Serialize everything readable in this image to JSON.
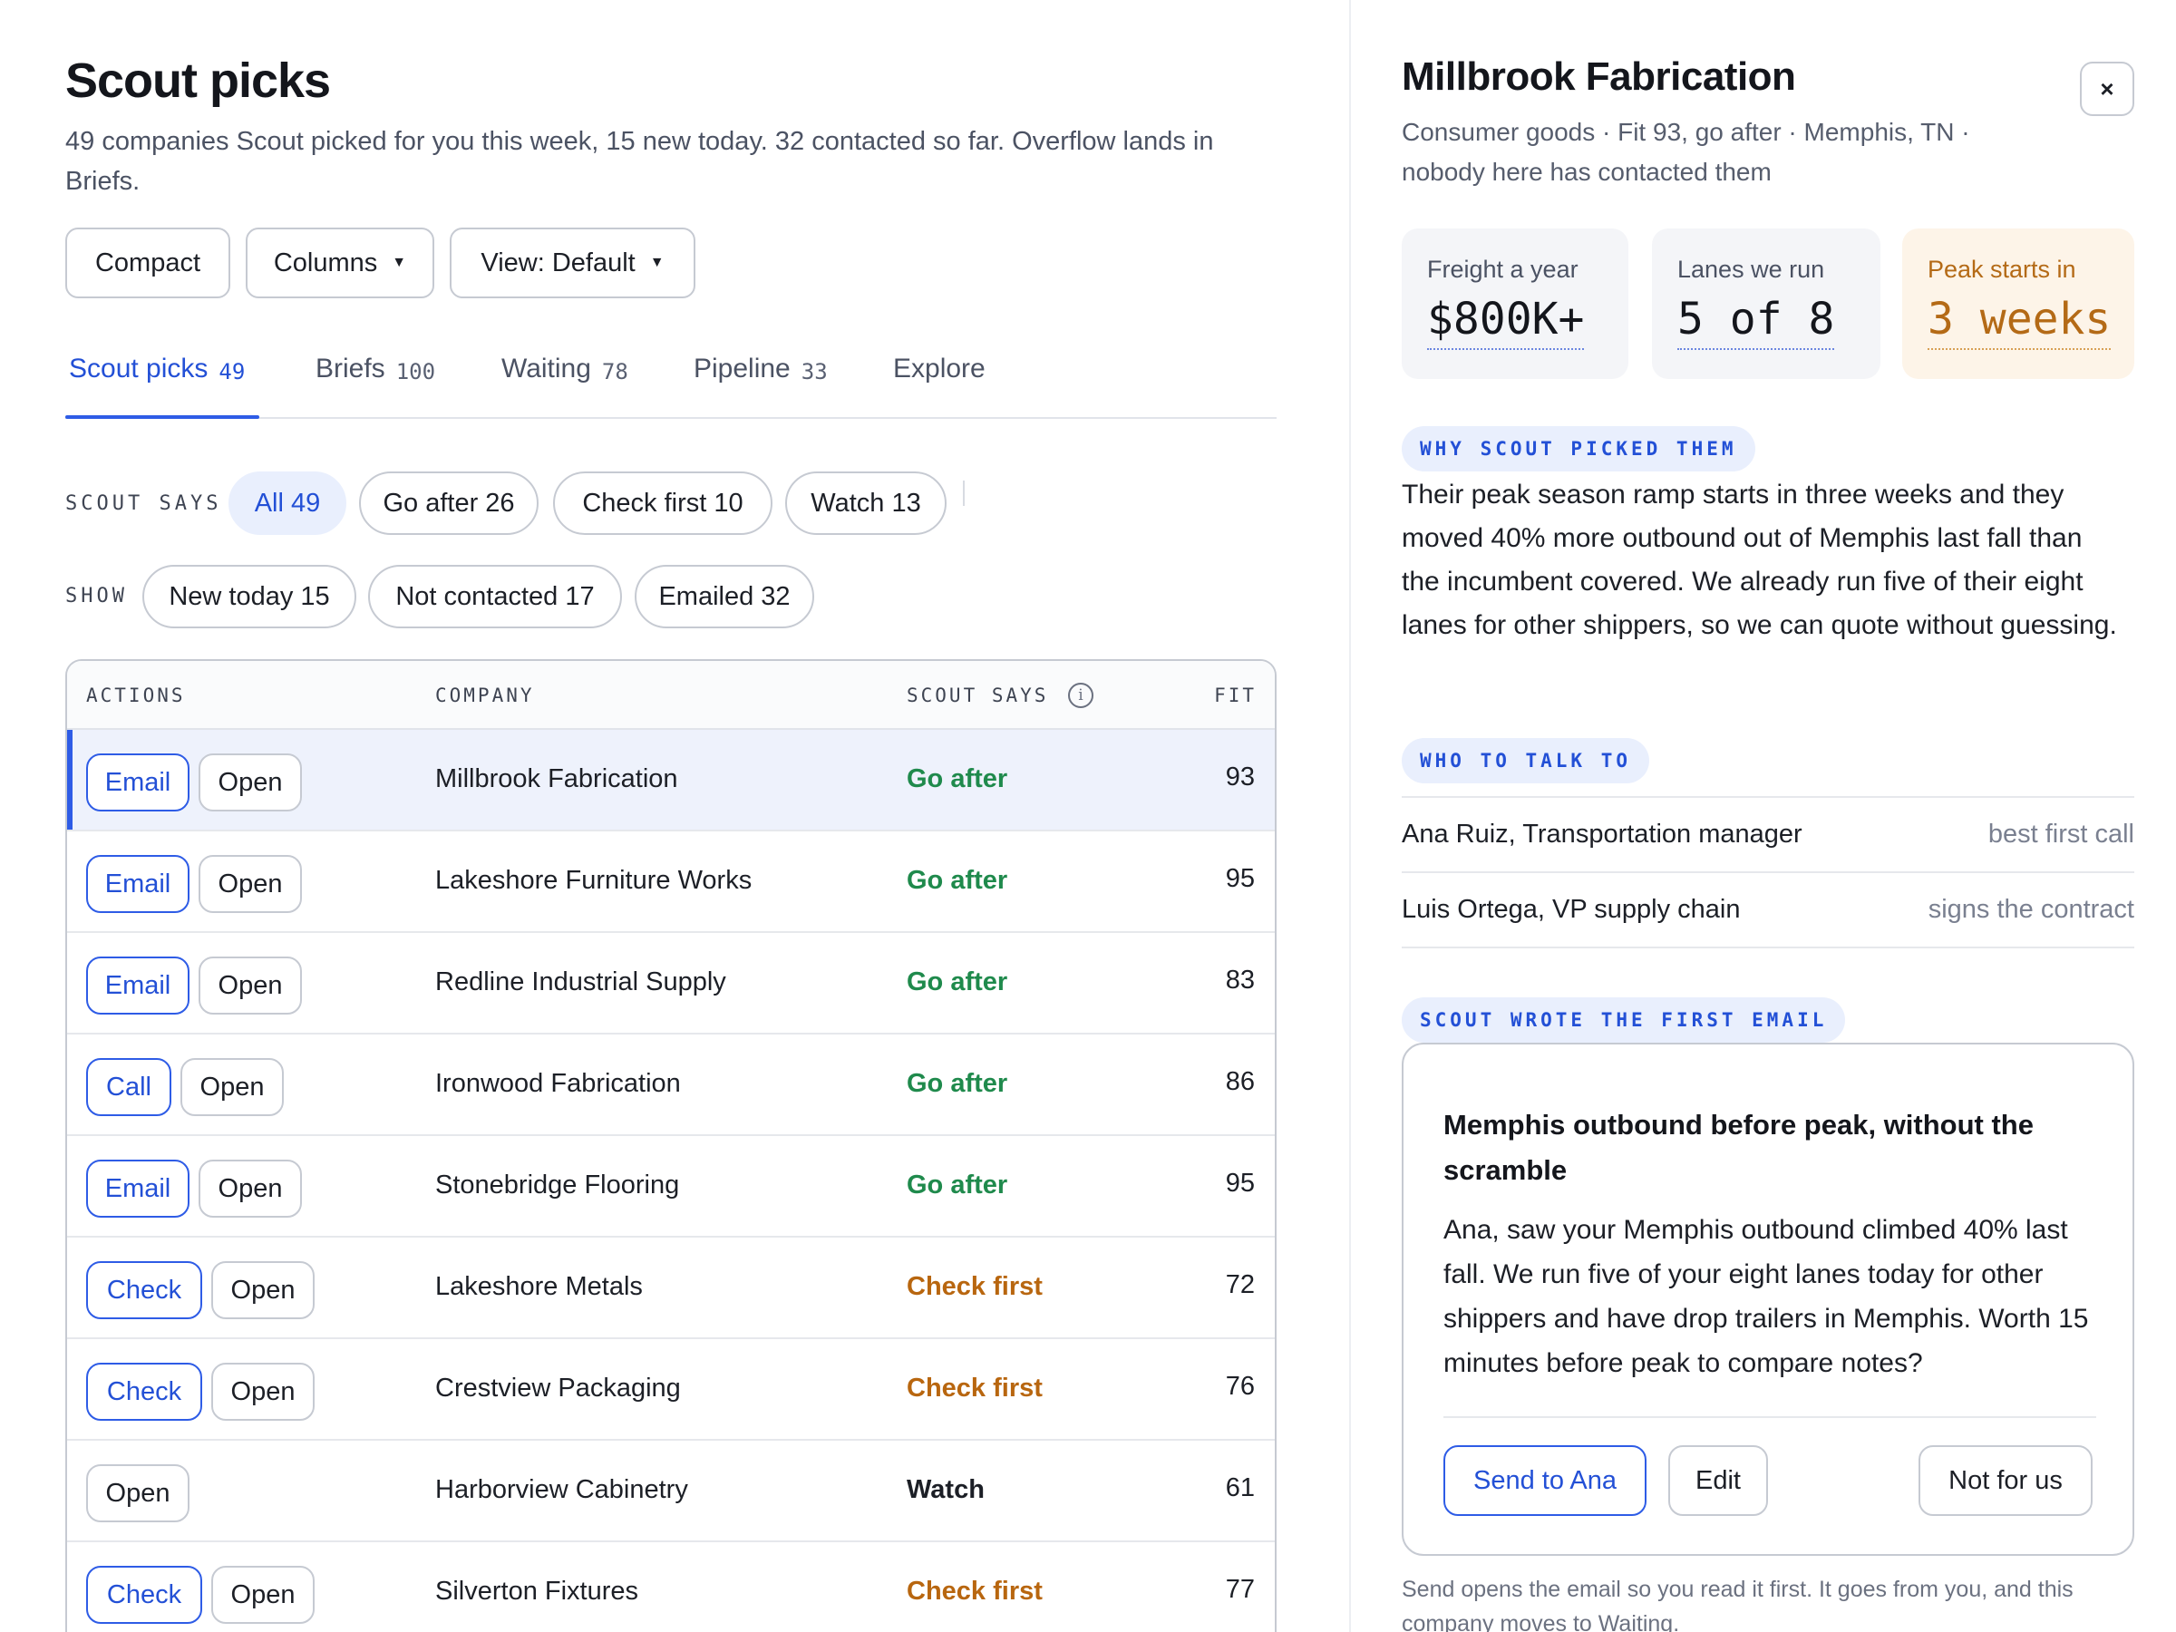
{
  "header": {
    "title": "Scout picks",
    "subtitle": "49 companies Scout picked for you this week, 15 new today. 32 contacted so far. Overflow lands in Briefs."
  },
  "toolbar": {
    "compact": "Compact",
    "columns": "Columns",
    "view": "View: Default"
  },
  "tabs": [
    {
      "label": "Scout picks",
      "count": "49",
      "active": true
    },
    {
      "label": "Briefs",
      "count": "100"
    },
    {
      "label": "Waiting",
      "count": "78"
    },
    {
      "label": "Pipeline",
      "count": "33"
    },
    {
      "label": "Explore",
      "count": ""
    }
  ],
  "filters": {
    "scout_says_label": "SCOUT SAYS",
    "scout_says": [
      "All 49",
      "Go after 26",
      "Check first 10",
      "Watch 13"
    ],
    "show_label": "SHOW",
    "show": [
      "New today 15",
      "Not contacted 17",
      "Emailed 32"
    ]
  },
  "table": {
    "headers": {
      "actions": "ACTIONS",
      "company": "COMPANY",
      "scout_says": "SCOUT SAYS",
      "fit": "FIT",
      "info_icon": "i"
    },
    "rows": [
      {
        "primary": "Email",
        "open": "Open",
        "company": "Millbrook Fabrication",
        "verdict": "Go after",
        "fit": "93"
      },
      {
        "primary": "Email",
        "open": "Open",
        "company": "Lakeshore Furniture Works",
        "verdict": "Go after",
        "fit": "95"
      },
      {
        "primary": "Email",
        "open": "Open",
        "company": "Redline Industrial Supply",
        "verdict": "Go after",
        "fit": "83"
      },
      {
        "primary": "Call",
        "open": "Open",
        "company": "Ironwood Fabrication",
        "verdict": "Go after",
        "fit": "86"
      },
      {
        "primary": "Email",
        "open": "Open",
        "company": "Stonebridge Flooring",
        "verdict": "Go after",
        "fit": "95"
      },
      {
        "primary": "Check",
        "open": "Open",
        "company": "Lakeshore Metals",
        "verdict": "Check first",
        "fit": "72"
      },
      {
        "primary": "Check",
        "open": "Open",
        "company": "Crestview Packaging",
        "verdict": "Check first",
        "fit": "76"
      },
      {
        "primary": "",
        "open": "Open",
        "company": "Harborview Cabinetry",
        "verdict": "Watch",
        "fit": "61"
      },
      {
        "primary": "Check",
        "open": "Open",
        "company": "Silverton Fixtures",
        "verdict": "Check first",
        "fit": "77"
      }
    ]
  },
  "detail": {
    "title": "Millbrook Fabrication",
    "subtitle": "Consumer goods · Fit 93, go after · Memphis, TN · nobody here has contacted them",
    "close_icon": "×",
    "stats": [
      {
        "label": "Freight a year",
        "value": "$800K+"
      },
      {
        "label": "Lanes we run",
        "value": "5 of 8"
      },
      {
        "label": "Peak starts in",
        "value": "3 weeks"
      }
    ],
    "why_label": "WHY SCOUT PICKED THEM",
    "why_text": "Their peak season ramp starts in three weeks and they moved 40% more outbound out of Memphis last fall than the incumbent covered. We already run five of their eight lanes for other shippers, so we can quote without guessing.",
    "who_label": "WHO TO TALK TO",
    "people": [
      {
        "name": "Ana Ruiz, Transportation manager",
        "role": "best first call"
      },
      {
        "name": "Luis Ortega, VP supply chain",
        "role": "signs the contract"
      }
    ],
    "email_label": "SCOUT WROTE THE FIRST EMAIL",
    "email": {
      "subject": "Memphis outbound before peak, without the scramble",
      "body": "Ana, saw your Memphis outbound climbed 40% last fall. We run five of your eight lanes today for other shippers and have drop trailers in Memphis. Worth 15 minutes before peak to compare notes?",
      "send": "Send to Ana",
      "edit": "Edit",
      "decline": "Not for us"
    },
    "footnote": "Send opens the email so you read it first. It goes from you, and this company moves to Waiting."
  },
  "colors": {
    "accent": "#2e5ce6",
    "go_after": "#1f8a4c",
    "check_first": "#b8660f",
    "watch": "#1c1f26",
    "peak_warm": "#b46a16"
  }
}
